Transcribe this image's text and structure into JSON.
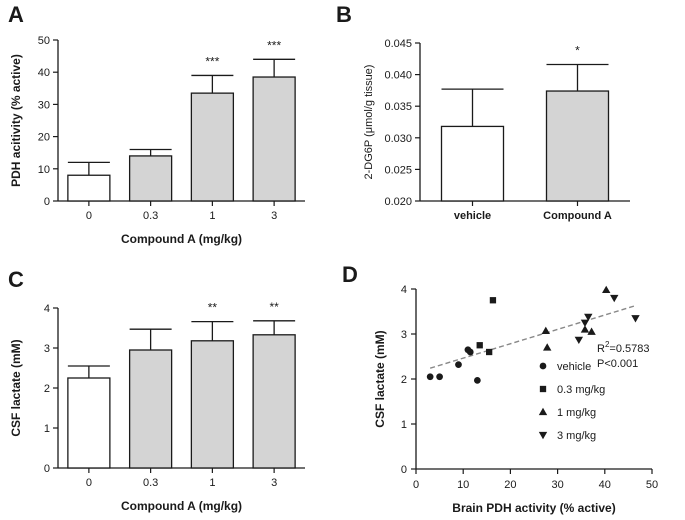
{
  "colors": {
    "bar_fill": "#d4d4d4",
    "vehicle_fill": "#ffffff",
    "stroke": "#1a1a1a",
    "trend": "#888888"
  },
  "chart_data": [
    {
      "panel": "A",
      "type": "bar",
      "categories": [
        "0",
        "0.3",
        "1",
        "3"
      ],
      "values": [
        8,
        14,
        33.5,
        38.5
      ],
      "errors": [
        4,
        2,
        5.5,
        5.5
      ],
      "fills": [
        "vehicle",
        "bar",
        "bar",
        "bar"
      ],
      "significance": [
        "",
        "",
        "***",
        "***"
      ],
      "ylim": [
        0,
        50
      ],
      "yticks": [
        "0",
        "10",
        "20",
        "30",
        "40",
        "50"
      ],
      "xlabel": "Compound A  (mg/kg)",
      "ylabel": "PDH acitivity  (% active)"
    },
    {
      "panel": "B",
      "type": "bar",
      "categories": [
        "vehicle",
        "Compound A"
      ],
      "values": [
        0.0318,
        0.0374
      ],
      "errors": [
        0.0059,
        0.0042
      ],
      "fills": [
        "vehicle",
        "bar"
      ],
      "significance": [
        "",
        "*"
      ],
      "ylim": [
        0.02,
        0.045
      ],
      "yticks": [
        "0.020",
        "0.025",
        "0.030",
        "0.035",
        "0.040",
        "0.045"
      ],
      "xlabel": "",
      "ylabel": "2-DG6P (μmol/g tissue)"
    },
    {
      "panel": "C",
      "type": "bar",
      "categories": [
        "0",
        "0.3",
        "1",
        "3"
      ],
      "values": [
        2.25,
        2.95,
        3.18,
        3.33
      ],
      "errors": [
        0.3,
        0.52,
        0.48,
        0.35
      ],
      "fills": [
        "vehicle",
        "bar",
        "bar",
        "bar"
      ],
      "significance": [
        "",
        "",
        "**",
        "**"
      ],
      "ylim": [
        0,
        4
      ],
      "yticks": [
        "0",
        "1",
        "2",
        "3",
        "4"
      ],
      "xlabel": "Compound A  (mg/kg)",
      "ylabel": "CSF lactate (mM)"
    },
    {
      "panel": "D",
      "type": "scatter",
      "xlim": [
        0,
        50
      ],
      "ylim": [
        0,
        4
      ],
      "xticks": [
        "0",
        "10",
        "20",
        "30",
        "40",
        "50"
      ],
      "yticks": [
        "0",
        "1",
        "2",
        "3",
        "4"
      ],
      "xlabel": "Brain PDH activity (% active)",
      "ylabel": "CSF lactate (mM)",
      "series": [
        {
          "name": "vehicle",
          "marker": "circle",
          "points": [
            [
              3,
              2.05
            ],
            [
              5,
              2.05
            ],
            [
              9,
              2.32
            ],
            [
              11,
              2.65
            ],
            [
              11.5,
              2.6
            ],
            [
              13,
              1.97
            ]
          ]
        },
        {
          "name": "0.3 mg/kg",
          "marker": "square",
          "points": [
            [
              13.5,
              2.75
            ],
            [
              15.5,
              2.6
            ],
            [
              16.3,
              3.75
            ]
          ]
        },
        {
          "name": "1 mg/kg",
          "marker": "triangle-up",
          "points": [
            [
              27.5,
              3.07
            ],
            [
              27.8,
              2.7
            ],
            [
              35.8,
              3.1
            ],
            [
              37.2,
              3.05
            ],
            [
              40.3,
              3.98
            ]
          ]
        },
        {
          "name": "3 mg/kg",
          "marker": "triangle-down",
          "points": [
            [
              34.5,
              2.87
            ],
            [
              35.8,
              3.25
            ],
            [
              36.5,
              3.38
            ],
            [
              42,
              3.8
            ],
            [
              46.5,
              3.35
            ]
          ]
        }
      ],
      "trendline": {
        "x": [
          3,
          46.5
        ],
        "y": [
          2.24,
          3.63
        ]
      },
      "r2_prefix": "R",
      "r2_sup": "2",
      "r2_value": "=0.5783",
      "pvalue": "P<0.001"
    }
  ]
}
